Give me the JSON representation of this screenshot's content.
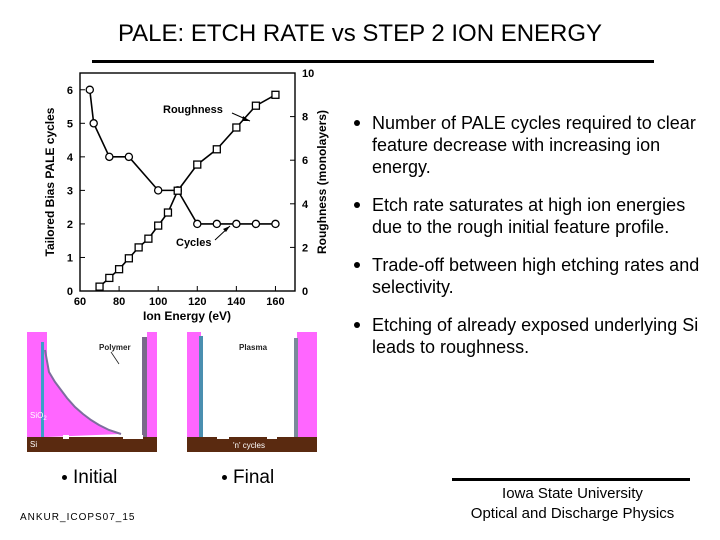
{
  "title": "PALE: ETCH RATE vs STEP 2 ION ENERGY",
  "bullets": [
    "Number of PALE cycles required to clear feature decrease with increasing ion energy.",
    "Etch rate saturates at high ion energies due to the rough initial feature profile.",
    "Trade-off between high etching rates and selectivity.",
    "Etching of already exposed underlying Si leads to roughness."
  ],
  "chart_data": {
    "type": "line",
    "xlabel": "Ion Energy (eV)",
    "ylabel_left": "Tailored Bias PALE cycles",
    "ylabel_right": "Roughness (monolayers)",
    "xlim": [
      60,
      170
    ],
    "ylim_left": [
      0,
      6.5
    ],
    "ylim_right": [
      0,
      10
    ],
    "x_ticks": [
      "60",
      "80",
      "100",
      "120",
      "140",
      "160"
    ],
    "y_ticks_left": [
      "0",
      "1",
      "2",
      "3",
      "4",
      "5",
      "6"
    ],
    "y_ticks_right": [
      "0",
      "2",
      "4",
      "6",
      "8",
      "10"
    ],
    "series": [
      {
        "name": "Cycles",
        "axis": "left",
        "marker": "circle",
        "x": [
          65,
          67,
          75,
          85,
          100,
          110,
          120,
          130,
          140,
          150,
          160
        ],
        "y": [
          6,
          5,
          4,
          4,
          3,
          3,
          2,
          2,
          2,
          2,
          2
        ]
      },
      {
        "name": "Roughness",
        "axis": "right",
        "marker": "square",
        "x": [
          70,
          75,
          80,
          85,
          90,
          95,
          100,
          105,
          110,
          120,
          130,
          140,
          150,
          160
        ],
        "y": [
          0.2,
          0.6,
          1,
          1.5,
          2,
          2.4,
          3,
          3.6,
          4.6,
          5.8,
          6.5,
          7.5,
          8.5,
          9
        ]
      }
    ],
    "annotations": [
      {
        "text": "Roughness",
        "target_series": "Roughness"
      },
      {
        "text": "Cycles",
        "target_series": "Cycles"
      }
    ]
  },
  "sim_left_labels": {
    "polymer": "Polymer",
    "sio2": "SiO",
    "sio2_sub": "2",
    "si": "Si"
  },
  "sim_right_labels": {
    "plasma": "Plasma",
    "cycles": "'n' cycles"
  },
  "captions": {
    "initial": "Initial",
    "final": "Final"
  },
  "footer_code": "ANKUR_ICOPS07_15",
  "institution": {
    "line1": "Iowa State University",
    "line2": "Optical and Discharge Physics"
  },
  "colors": {
    "pink": "#ff66ff",
    "brown": "#5a2a10",
    "grey": "#9a9a9a"
  }
}
